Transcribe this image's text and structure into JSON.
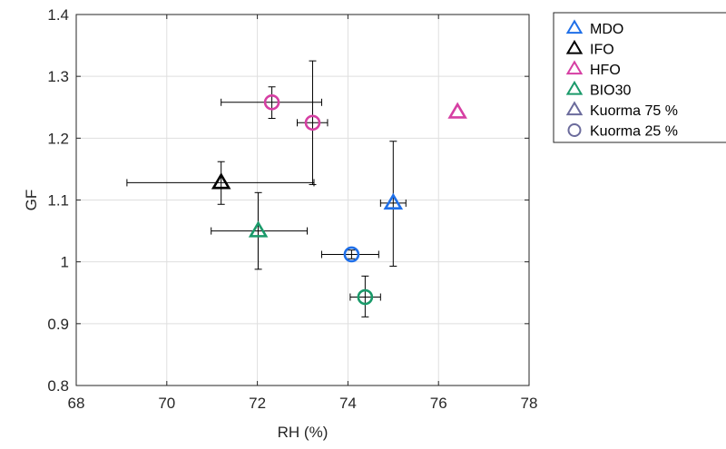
{
  "chart_data": {
    "type": "scatter",
    "xlabel": "RH (%)",
    "ylabel": "GF",
    "xlim": [
      68,
      78
    ],
    "ylim": [
      0.8,
      1.4
    ],
    "xticks": [
      68,
      70,
      72,
      74,
      76,
      78
    ],
    "yticks": [
      0.8,
      0.9,
      1,
      1.1,
      1.2,
      1.3,
      1.4
    ],
    "xtick_labels": [
      "68",
      "70",
      "72",
      "74",
      "76",
      "78"
    ],
    "ytick_labels": [
      "0.8",
      "0.9",
      "1",
      "1.1",
      "1.2",
      "1.3",
      "1.4"
    ],
    "grid": true,
    "legend_position": "outside-top-right",
    "series": [
      {
        "name": "MDO",
        "color": "#1f6fe8",
        "points": [
          {
            "marker": "triangle",
            "x": 75.0,
            "y": 1.095,
            "xerr": [
              74.72,
              75.28
            ],
            "yerr": [
              0.993,
              1.195
            ]
          },
          {
            "marker": "circle",
            "x": 74.08,
            "y": 1.012,
            "xerr": [
              73.42,
              74.68
            ],
            "yerr": [
              1.005,
              1.019
            ]
          }
        ]
      },
      {
        "name": "IFO",
        "color": "#000000",
        "points": [
          {
            "marker": "triangle",
            "x": 71.2,
            "y": 1.128,
            "xerr": [
              69.12,
              73.25
            ],
            "yerr": [
              1.093,
              1.162
            ]
          }
        ]
      },
      {
        "name": "HFO",
        "color": "#d63fa3",
        "points": [
          {
            "marker": "triangle",
            "x": 76.42,
            "y": 1.242,
            "xerr": [
              76.42,
              76.42
            ],
            "yerr": [
              1.242,
              1.242
            ]
          },
          {
            "marker": "circle",
            "x": 72.32,
            "y": 1.258,
            "xerr": [
              71.2,
              73.42
            ],
            "yerr": [
              1.232,
              1.283
            ]
          },
          {
            "marker": "circle",
            "x": 73.22,
            "y": 1.225,
            "xerr": [
              72.88,
              73.55
            ],
            "yerr": [
              1.125,
              1.325
            ]
          }
        ]
      },
      {
        "name": "BIO30",
        "color": "#1a9a6a",
        "points": [
          {
            "marker": "triangle",
            "x": 72.02,
            "y": 1.05,
            "xerr": [
              70.98,
              73.1
            ],
            "yerr": [
              0.988,
              1.112
            ]
          },
          {
            "marker": "circle",
            "x": 74.38,
            "y": 0.943,
            "xerr": [
              74.05,
              74.72
            ],
            "yerr": [
              0.911,
              0.977
            ]
          }
        ]
      }
    ],
    "legend": [
      {
        "label": "MDO",
        "marker": "triangle",
        "color": "#1f6fe8"
      },
      {
        "label": "IFO",
        "marker": "triangle",
        "color": "#000000"
      },
      {
        "label": "HFO",
        "marker": "triangle",
        "color": "#d63fa3"
      },
      {
        "label": "BIO30",
        "marker": "triangle",
        "color": "#1a9a6a"
      },
      {
        "label": "Kuorma 75 %",
        "marker": "triangle",
        "color": "#6b6b9c"
      },
      {
        "label": "Kuorma 25 %",
        "marker": "circle",
        "color": "#6b6b9c"
      }
    ]
  }
}
